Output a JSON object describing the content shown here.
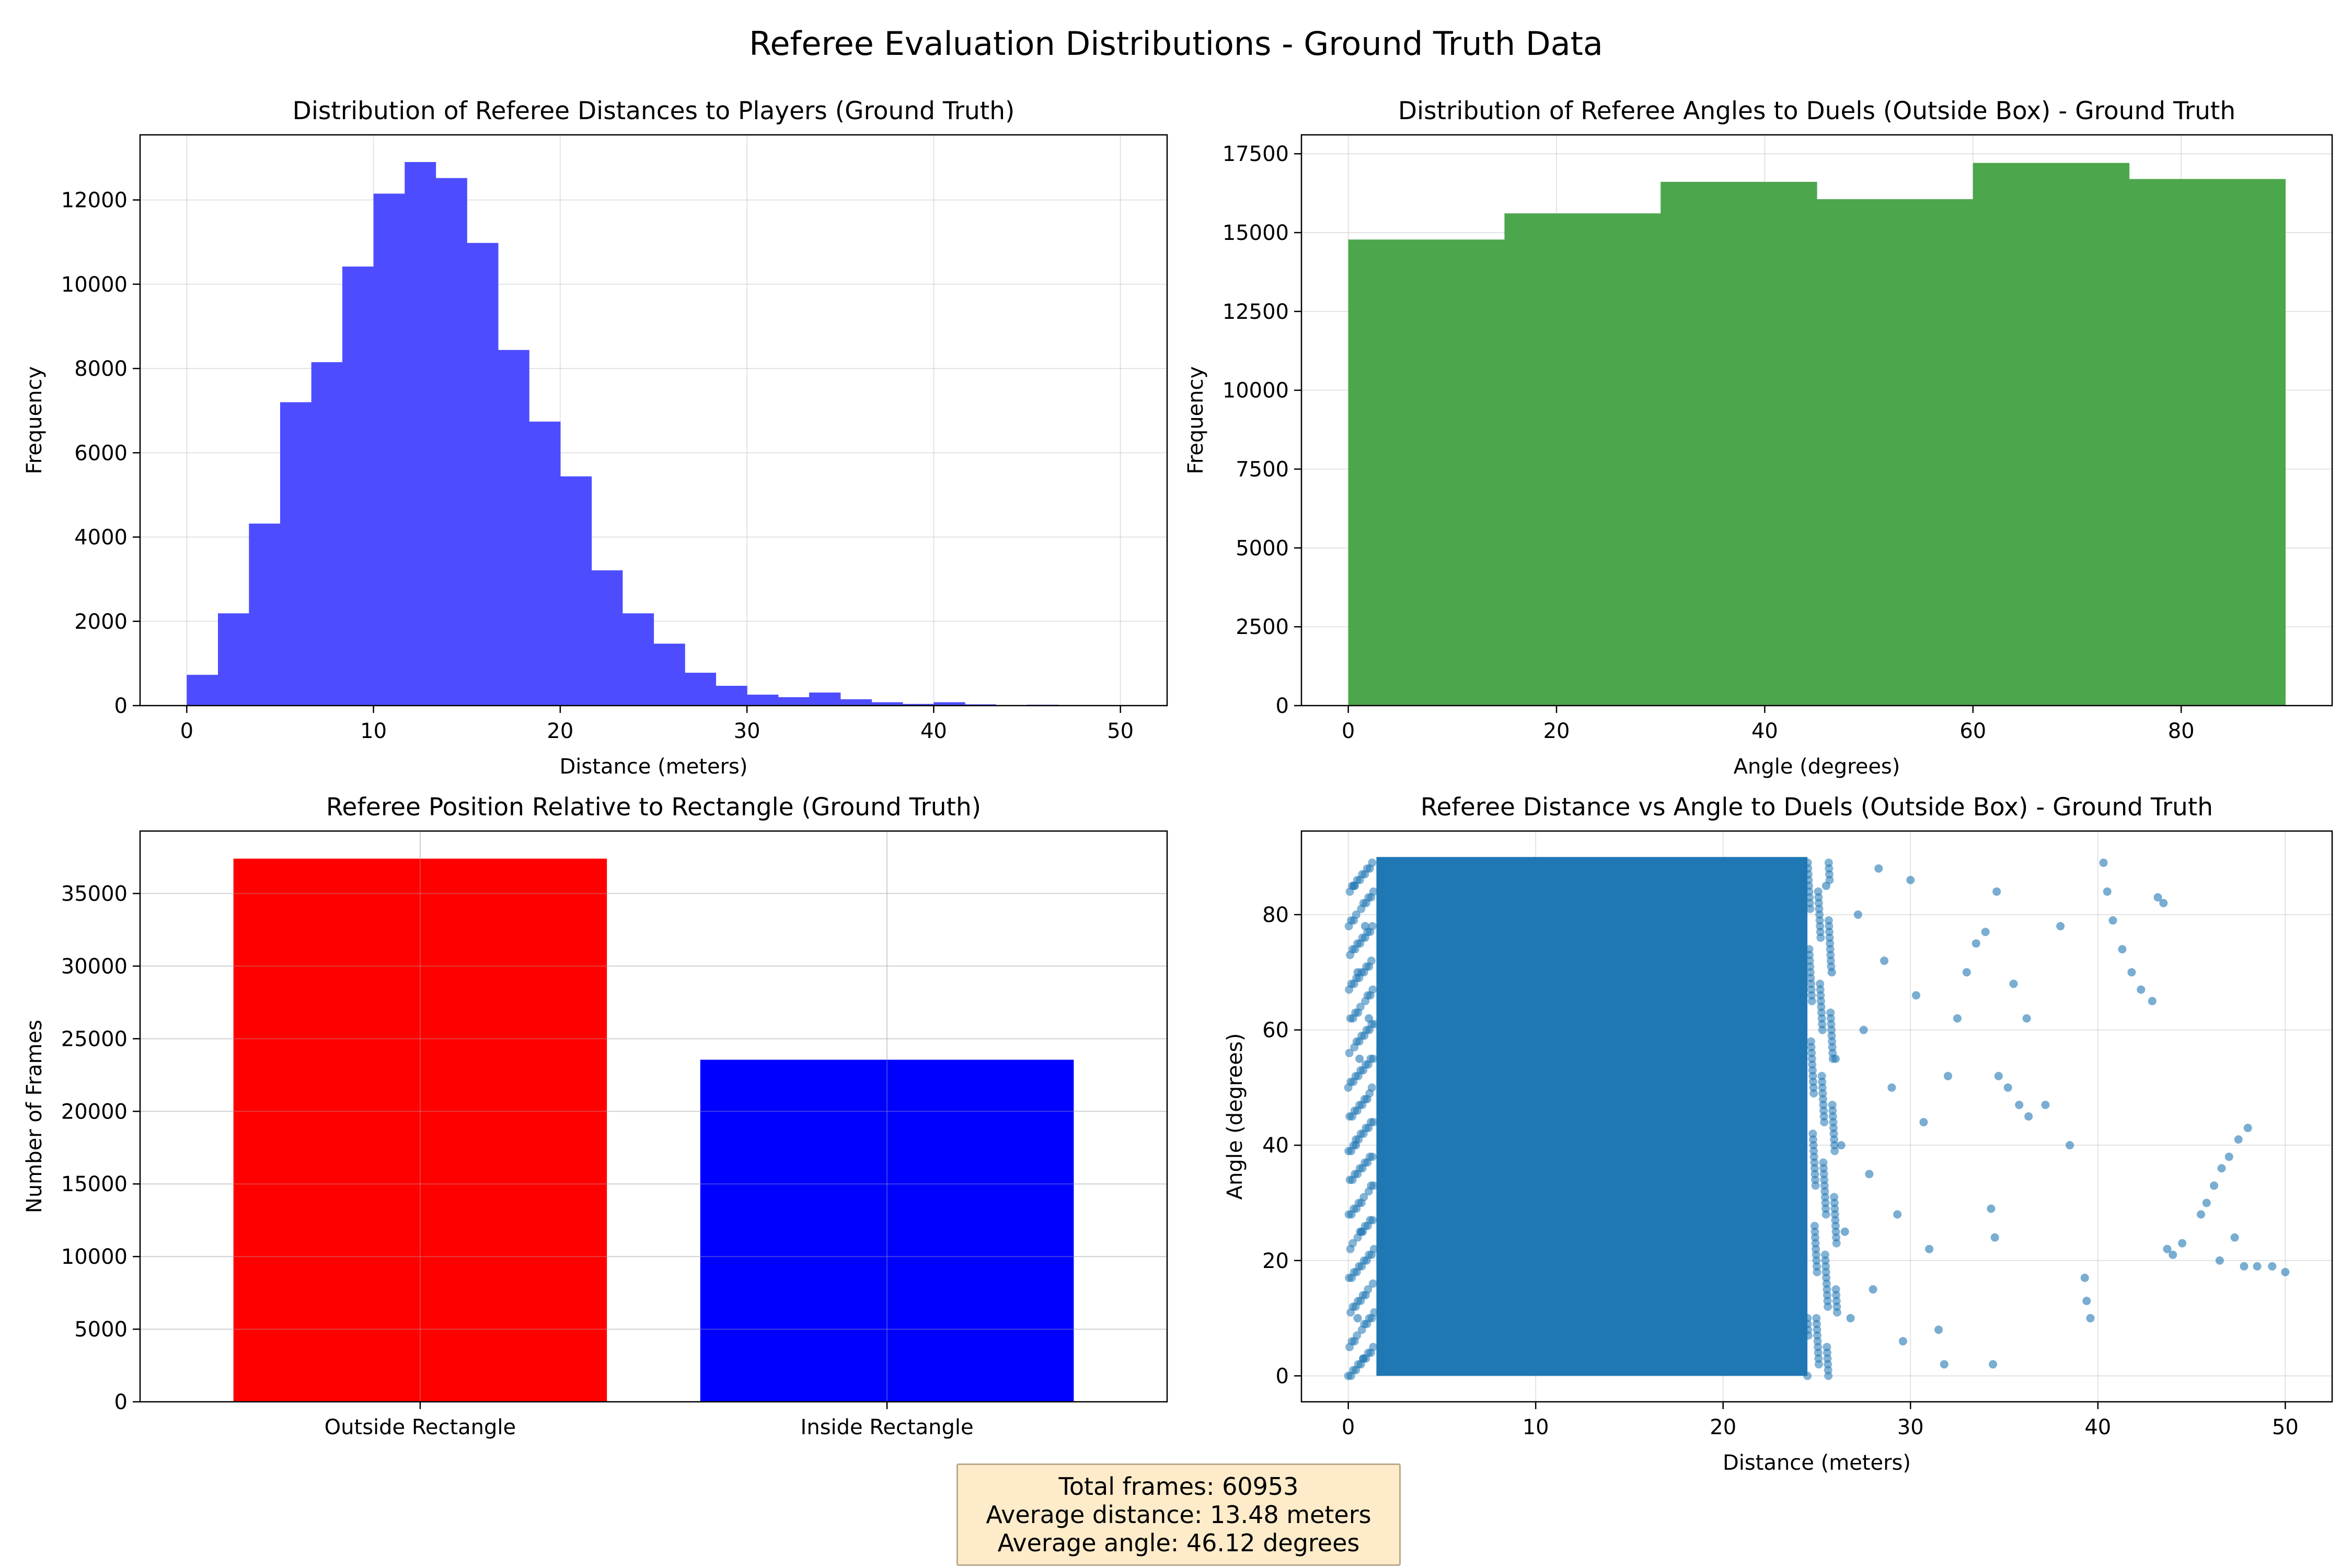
{
  "suptitle": "Referee Evaluation Distributions - Ground Truth Data",
  "chart_data": [
    {
      "type": "bar",
      "subtype": "histogram",
      "title": "Distribution of Referee Distances to Players (Ground Truth)",
      "xlabel": "Distance (meters)",
      "ylabel": "Frequency",
      "xlim": [
        -2.5,
        52.5
      ],
      "ylim": [
        0,
        13545
      ],
      "xticks": [
        0,
        10,
        20,
        30,
        40,
        50
      ],
      "yticks": [
        0,
        2000,
        4000,
        6000,
        8000,
        10000,
        12000
      ],
      "bin_edges": [
        0,
        1.67,
        3.33,
        5,
        6.67,
        8.33,
        10,
        11.67,
        13.33,
        15,
        16.67,
        18.33,
        20,
        21.67,
        23.33,
        25,
        26.67,
        28.33,
        30,
        31.67,
        33.33,
        35,
        36.67,
        38.33,
        40,
        41.67,
        43.33,
        45,
        46.67,
        48.33,
        50
      ],
      "values": [
        730,
        2190,
        4320,
        7200,
        8150,
        10420,
        12150,
        12900,
        12520,
        10980,
        8440,
        6740,
        5440,
        3210,
        2190,
        1470,
        780,
        470,
        260,
        200,
        310,
        150,
        80,
        40,
        80,
        30,
        10,
        20,
        10,
        10
      ],
      "color": "#4d4dff",
      "grid": true
    },
    {
      "type": "bar",
      "subtype": "histogram",
      "title": "Distribution of Referee Angles to Duels (Outside Box) - Ground Truth",
      "xlabel": "Angle (degrees)",
      "ylabel": "Frequency",
      "xlim": [
        -4.5,
        94.5
      ],
      "ylim": [
        0,
        18100
      ],
      "xticks": [
        0,
        20,
        40,
        60,
        80
      ],
      "yticks": [
        0,
        2500,
        5000,
        7500,
        10000,
        12500,
        15000,
        17500
      ],
      "bin_edges": [
        0,
        15,
        30,
        45,
        60,
        75,
        90
      ],
      "values": [
        14780,
        15610,
        16610,
        16060,
        17210,
        16700
      ],
      "color": "#4ca64c",
      "grid": true
    },
    {
      "type": "bar",
      "title": "Referee Position Relative to Rectangle (Ground Truth)",
      "xlabel": "",
      "ylabel": "Number of Frames",
      "categories": [
        "Outside Rectangle",
        "Inside Rectangle"
      ],
      "values": [
        37400,
        23553
      ],
      "colors": [
        "#ff0000",
        "#0000ff"
      ],
      "ylim": [
        0,
        39300
      ],
      "yticks": [
        0,
        5000,
        10000,
        15000,
        20000,
        25000,
        30000,
        35000
      ],
      "grid": true
    },
    {
      "type": "scatter",
      "title": "Referee Distance vs Angle to Duels (Outside Box) - Ground Truth",
      "xlabel": "Distance (meters)",
      "ylabel": "Angle (degrees)",
      "xlim": [
        -2.5,
        52.5
      ],
      "ylim": [
        -4.5,
        94.5
      ],
      "xticks": [
        0,
        10,
        20,
        30,
        40,
        50
      ],
      "yticks": [
        0,
        20,
        40,
        60,
        80
      ],
      "color": "#1f77b4",
      "grid": true,
      "dense_region": {
        "x": [
          1.5,
          24.5
        ],
        "y": [
          0,
          90
        ]
      },
      "points": [
        [
          0.3,
          85
        ],
        [
          0.5,
          70
        ],
        [
          0.6,
          55
        ],
        [
          0.4,
          40
        ],
        [
          0.7,
          25
        ],
        [
          0.5,
          10
        ],
        [
          0.8,
          3
        ],
        [
          1.0,
          48
        ],
        [
          1.1,
          62
        ],
        [
          0.9,
          78
        ],
        [
          25.5,
          85
        ],
        [
          25.8,
          70
        ],
        [
          26.0,
          55
        ],
        [
          26.3,
          40
        ],
        [
          26.5,
          25
        ],
        [
          26.8,
          10
        ],
        [
          27.2,
          80
        ],
        [
          27.5,
          60
        ],
        [
          27.8,
          35
        ],
        [
          28.0,
          15
        ],
        [
          28.3,
          88
        ],
        [
          28.6,
          72
        ],
        [
          29.0,
          50
        ],
        [
          29.3,
          28
        ],
        [
          29.6,
          6
        ],
        [
          30.0,
          86
        ],
        [
          30.3,
          66
        ],
        [
          30.7,
          44
        ],
        [
          31.0,
          22
        ],
        [
          31.5,
          8
        ],
        [
          31.8,
          2
        ],
        [
          32.0,
          52
        ],
        [
          32.5,
          62
        ],
        [
          33.0,
          70
        ],
        [
          33.5,
          75
        ],
        [
          34.0,
          77
        ],
        [
          34.3,
          29
        ],
        [
          34.5,
          24
        ],
        [
          34.4,
          2
        ],
        [
          34.6,
          84
        ],
        [
          34.7,
          52
        ],
        [
          35.2,
          50
        ],
        [
          35.8,
          47
        ],
        [
          36.3,
          45
        ],
        [
          36.2,
          62
        ],
        [
          35.5,
          68
        ],
        [
          37.2,
          47
        ],
        [
          38.0,
          78
        ],
        [
          38.5,
          40
        ],
        [
          39.3,
          17
        ],
        [
          39.4,
          13
        ],
        [
          39.6,
          10
        ],
        [
          40.3,
          89
        ],
        [
          40.5,
          84
        ],
        [
          40.8,
          79
        ],
        [
          41.3,
          74
        ],
        [
          41.8,
          70
        ],
        [
          42.3,
          67
        ],
        [
          42.9,
          65
        ],
        [
          43.2,
          83
        ],
        [
          43.5,
          82
        ],
        [
          43.7,
          22
        ],
        [
          44.0,
          21
        ],
        [
          44.5,
          23
        ],
        [
          45.5,
          28
        ],
        [
          45.8,
          30
        ],
        [
          46.2,
          33
        ],
        [
          46.6,
          36
        ],
        [
          47.0,
          38
        ],
        [
          47.5,
          41
        ],
        [
          48.0,
          43
        ],
        [
          46.5,
          20
        ],
        [
          47.3,
          24
        ],
        [
          47.8,
          19
        ],
        [
          48.5,
          19
        ],
        [
          49.3,
          19
        ],
        [
          50.0,
          18
        ]
      ]
    }
  ],
  "stats": {
    "total_frames": "Total frames: 60953",
    "average_distance": "Average distance: 13.48 meters",
    "average_angle": "Average angle: 46.12 degrees"
  }
}
